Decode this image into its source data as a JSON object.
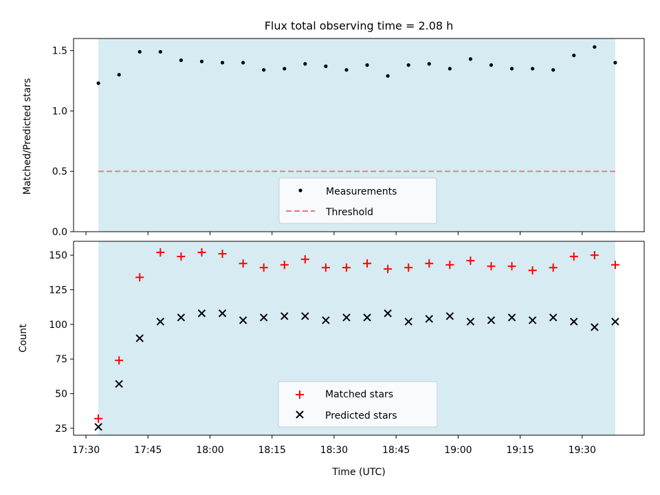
{
  "chart_data": [
    {
      "type": "scatter",
      "title": "Flux total observing time = 2.08 h",
      "xlabel": "",
      "ylabel": "Matched/Predicted stars",
      "ylim": [
        0,
        1.6
      ],
      "yticks": [
        "0.0",
        "0.5",
        "1.0",
        "1.5"
      ],
      "ytick_values": [
        0,
        0.5,
        1.0,
        1.5
      ],
      "shaded_span_minutes": [
        33,
        158
      ],
      "legend_location": "lower-center",
      "series": [
        {
          "name": "Measurements",
          "marker": "dot",
          "color": "#000000",
          "x_minutes": [
            33,
            38,
            43,
            48,
            53,
            58,
            63,
            68,
            73,
            78,
            83,
            88,
            93,
            98,
            103,
            108,
            113,
            118,
            123,
            128,
            133,
            138,
            143,
            148,
            153,
            158
          ],
          "values": [
            1.23,
            1.3,
            1.49,
            1.49,
            1.42,
            1.41,
            1.4,
            1.4,
            1.34,
            1.35,
            1.39,
            1.37,
            1.34,
            1.38,
            1.29,
            1.38,
            1.39,
            1.35,
            1.43,
            1.38,
            1.35,
            1.35,
            1.34,
            1.46,
            1.53,
            1.4
          ]
        },
        {
          "name": "Threshold",
          "marker": "dashed-line",
          "color": "#f07070",
          "value": 0.5
        }
      ]
    },
    {
      "type": "scatter",
      "title": "",
      "xlabel": "Time (UTC)",
      "ylabel": "Count",
      "ylim": [
        20,
        160
      ],
      "yticks": [
        "25",
        "50",
        "75",
        "100",
        "125",
        "150"
      ],
      "ytick_values": [
        25,
        50,
        75,
        100,
        125,
        150
      ],
      "xlim_minutes": [
        27,
        165
      ],
      "xticks": [
        "17:30",
        "17:45",
        "18:00",
        "18:15",
        "18:30",
        "18:45",
        "19:00",
        "19:15",
        "19:30"
      ],
      "xtick_minutes": [
        30,
        45,
        60,
        75,
        90,
        105,
        120,
        135,
        150
      ],
      "x_origin": "17:00 UTC",
      "shaded_span_minutes": [
        33,
        158
      ],
      "legend_location": "lower-center",
      "series": [
        {
          "name": "Matched stars",
          "marker": "plus",
          "color": "#ff0000",
          "x_minutes": [
            33,
            38,
            43,
            48,
            53,
            58,
            63,
            68,
            73,
            78,
            83,
            88,
            93,
            98,
            103,
            108,
            113,
            118,
            123,
            128,
            133,
            138,
            143,
            148,
            153,
            158
          ],
          "values": [
            32,
            74,
            134,
            152,
            149,
            152,
            151,
            144,
            141,
            143,
            147,
            141,
            141,
            144,
            140,
            141,
            144,
            143,
            146,
            142,
            142,
            139,
            141,
            149,
            150,
            143
          ]
        },
        {
          "name": "Predicted stars",
          "marker": "x",
          "color": "#000000",
          "x_minutes": [
            33,
            38,
            43,
            48,
            53,
            58,
            63,
            68,
            73,
            78,
            83,
            88,
            93,
            98,
            103,
            108,
            113,
            118,
            123,
            128,
            133,
            138,
            143,
            148,
            153,
            158
          ],
          "values": [
            26,
            57,
            90,
            102,
            105,
            108,
            108,
            103,
            105,
            106,
            106,
            103,
            105,
            105,
            108,
            102,
            104,
            106,
            102,
            103,
            105,
            103,
            105,
            102,
            98,
            102
          ]
        }
      ]
    }
  ]
}
